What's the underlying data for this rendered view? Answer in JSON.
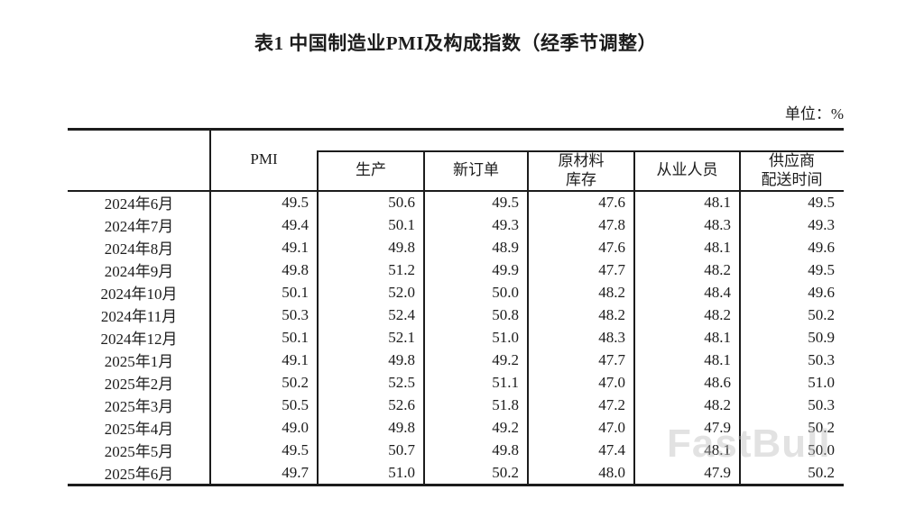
{
  "page": {
    "title": "表1 中国制造业PMI及构成指数（经季节调整）",
    "unit_label": "单位：%",
    "watermark": "FastBull"
  },
  "chart_data": {
    "type": "table",
    "title": "表1 中国制造业PMI及构成指数（经季节调整）",
    "unit": "%",
    "period_column": "",
    "columns": [
      "PMI",
      "生产",
      "新订单",
      "原材料库存",
      "从业人员",
      "供应商配送时间"
    ],
    "header_lines": [
      [
        "PMI"
      ],
      [
        "生产"
      ],
      [
        "新订单"
      ],
      [
        "原材料",
        "库存"
      ],
      [
        "从业人员"
      ],
      [
        "供应商",
        "配送时间"
      ]
    ],
    "rows": [
      {
        "period": "2024年6月",
        "values": [
          "49.5",
          "50.6",
          "49.5",
          "47.6",
          "48.1",
          "49.5"
        ]
      },
      {
        "period": "2024年7月",
        "values": [
          "49.4",
          "50.1",
          "49.3",
          "47.8",
          "48.3",
          "49.3"
        ]
      },
      {
        "period": "2024年8月",
        "values": [
          "49.1",
          "49.8",
          "48.9",
          "47.6",
          "48.1",
          "49.6"
        ]
      },
      {
        "period": "2024年9月",
        "values": [
          "49.8",
          "51.2",
          "49.9",
          "47.7",
          "48.2",
          "49.5"
        ]
      },
      {
        "period": "2024年10月",
        "values": [
          "50.1",
          "52.0",
          "50.0",
          "48.2",
          "48.4",
          "49.6"
        ]
      },
      {
        "period": "2024年11月",
        "values": [
          "50.3",
          "52.4",
          "50.8",
          "48.2",
          "48.2",
          "50.2"
        ]
      },
      {
        "period": "2024年12月",
        "values": [
          "50.1",
          "52.1",
          "51.0",
          "48.3",
          "48.1",
          "50.9"
        ]
      },
      {
        "period": "2025年1月",
        "values": [
          "49.1",
          "49.8",
          "49.2",
          "47.7",
          "48.1",
          "50.3"
        ]
      },
      {
        "period": "2025年2月",
        "values": [
          "50.2",
          "52.5",
          "51.1",
          "47.0",
          "48.6",
          "51.0"
        ]
      },
      {
        "period": "2025年3月",
        "values": [
          "50.5",
          "52.6",
          "51.8",
          "47.2",
          "48.2",
          "50.3"
        ]
      },
      {
        "period": "2025年4月",
        "values": [
          "49.0",
          "49.8",
          "49.2",
          "47.0",
          "47.9",
          "50.2"
        ]
      },
      {
        "period": "2025年5月",
        "values": [
          "49.5",
          "50.7",
          "49.8",
          "47.4",
          "48.1",
          "50.0"
        ]
      },
      {
        "period": "2025年6月",
        "values": [
          "49.7",
          "51.0",
          "50.2",
          "48.0",
          "47.9",
          "50.2"
        ]
      }
    ],
    "layout": {
      "style": "three-line statistical table",
      "grid": "vertical separators only between columns; thick top and bottom rules",
      "border_color": "#1c1c1c",
      "background": "#ffffff"
    }
  }
}
